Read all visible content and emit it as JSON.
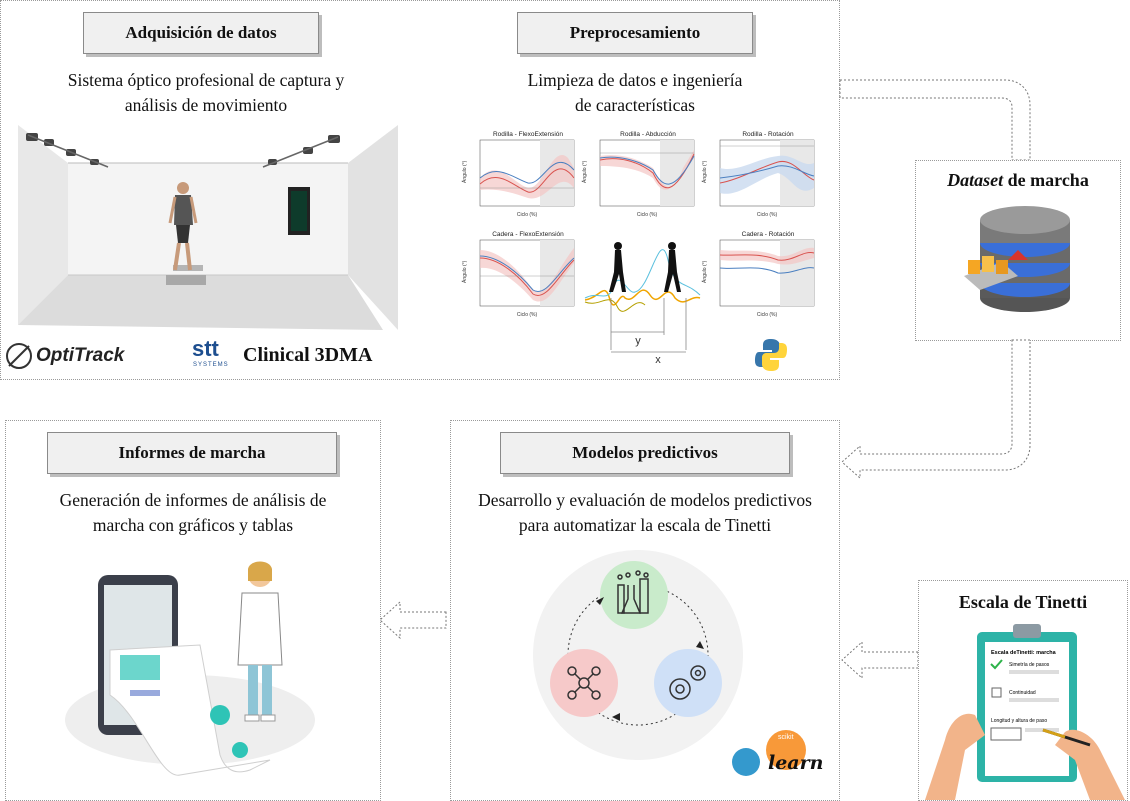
{
  "panels": {
    "adquisicion": {
      "title": "Adquisición de datos",
      "description_line1": "Sistema óptico profesional de captura y",
      "description_line2": "análisis de movimiento",
      "logos": {
        "optitrack": "OptiTrack",
        "stt": "stt",
        "stt_sub": "SYSTEMS",
        "clinical": "Clinical 3DMA"
      }
    },
    "preprocesamiento": {
      "title": "Preprocesamiento",
      "description_line1": "Limpieza de datos e ingeniería",
      "description_line2": "de características",
      "plots": [
        {
          "title": "Rodilla - FlexoExtensión",
          "ylabel": "Ángulo (°)",
          "xlabel": "Ciclo (%)"
        },
        {
          "title": "Rodilla - Abducción",
          "ylabel": "Ángulo (°)",
          "xlabel": "Ciclo (%)"
        },
        {
          "title": "Rodilla - Rotación",
          "ylabel": "Ángulo (°)",
          "xlabel": "Ciclo (%)"
        },
        {
          "title": "Cadera - FlexoExtensión",
          "ylabel": "Ángulo (°)",
          "xlabel": "Ciclo (%)"
        },
        {
          "title": "Cadera - Rotación",
          "ylabel": "Ángulo (°)",
          "xlabel": "Ciclo (%)"
        }
      ],
      "gait_labels": {
        "y": "y",
        "x": "x"
      }
    },
    "dataset": {
      "title_italic": "Dataset",
      "title_rest": " de marcha"
    },
    "informes": {
      "title": "Informes de marcha",
      "description_line1": "Generación de informes de análisis de",
      "description_line2": "marcha con gráficos y tablas"
    },
    "modelos": {
      "title": "Modelos predictivos",
      "description_line1": "Desarrollo y evaluación de modelos predictivos",
      "description_line2": "para automatizar la escala de Tinetti",
      "logo": {
        "top": "scikit",
        "main": "learn"
      }
    },
    "tinetti": {
      "title": "Escala de Tinetti",
      "sheet_title": "Escala deTinetti: marcha",
      "items": [
        "Simetría de pasos",
        "Continuidad",
        "Longitud y altura de paso"
      ]
    }
  },
  "colors": {
    "title_bg": "#f0f0f0",
    "panel_border": "#9a9a9a",
    "series_blue": "#4a7fc0",
    "series_red": "#d9534f",
    "db_blue": "#3a6fd8",
    "sklearn_orange": "#f89939",
    "sklearn_blue": "#3499cd",
    "circle_green": "#c9ebcb",
    "circle_red": "#f6c9c9",
    "circle_blue": "#cfe0f7",
    "clipboard_teal": "#2db3a7"
  }
}
